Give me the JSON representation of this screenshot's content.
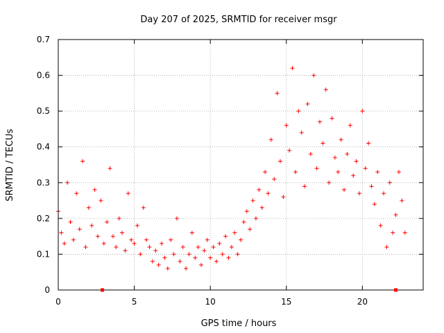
{
  "chart_data": {
    "type": "scatter",
    "title": "Day 207 of 2025, SRMTID for receiver msgr",
    "xlabel": "GPS time / hours",
    "ylabel": "SRMTID / TECUs",
    "xlim": [
      0,
      24
    ],
    "ylim": [
      0,
      0.7
    ],
    "x_ticks": [
      0,
      5,
      10,
      15,
      20
    ],
    "x_tick_labels": [
      "0",
      "5",
      "10",
      "15",
      "20"
    ],
    "y_ticks": [
      0,
      0.1,
      0.2,
      0.3,
      0.4,
      0.5,
      0.6,
      0.7
    ],
    "y_tick_labels": [
      "0",
      "0.1",
      "0.2",
      "0.3",
      "0.4",
      "0.5",
      "0.6",
      "0.7"
    ],
    "grid": true,
    "marker": "plus",
    "color": "#ff0000",
    "axis_markers": {
      "x": [
        2.9,
        22.2
      ],
      "y": 0
    },
    "series": [
      {
        "name": "msgr",
        "x": [
          0.0,
          0.2,
          0.4,
          0.6,
          0.8,
          1.0,
          1.2,
          1.4,
          1.6,
          1.8,
          2.0,
          2.2,
          2.4,
          2.6,
          2.8,
          3.0,
          3.2,
          3.4,
          3.6,
          3.8,
          4.0,
          4.2,
          4.4,
          4.6,
          4.8,
          5.0,
          5.2,
          5.4,
          5.6,
          5.8,
          6.0,
          6.2,
          6.4,
          6.6,
          6.8,
          7.0,
          7.2,
          7.4,
          7.6,
          7.8,
          8.0,
          8.2,
          8.4,
          8.6,
          8.8,
          9.0,
          9.2,
          9.4,
          9.6,
          9.8,
          10.0,
          10.2,
          10.4,
          10.6,
          10.8,
          11.0,
          11.2,
          11.4,
          11.6,
          11.8,
          12.0,
          12.2,
          12.4,
          12.6,
          12.8,
          13.0,
          13.2,
          13.4,
          13.6,
          13.8,
          14.0,
          14.2,
          14.4,
          14.6,
          14.8,
          15.0,
          15.2,
          15.4,
          15.6,
          15.8,
          16.0,
          16.2,
          16.4,
          16.6,
          16.8,
          17.0,
          17.2,
          17.4,
          17.6,
          17.8,
          18.0,
          18.2,
          18.4,
          18.6,
          18.8,
          19.0,
          19.2,
          19.4,
          19.6,
          19.8,
          20.0,
          20.2,
          20.4,
          20.6,
          20.8,
          21.0,
          21.2,
          21.4,
          21.6,
          21.8,
          22.0,
          22.2,
          22.4,
          22.6,
          22.8
        ],
        "y": [
          0.22,
          0.16,
          0.13,
          0.3,
          0.19,
          0.14,
          0.27,
          0.17,
          0.36,
          0.12,
          0.23,
          0.18,
          0.28,
          0.15,
          0.25,
          0.13,
          0.19,
          0.34,
          0.15,
          0.12,
          0.2,
          0.16,
          0.11,
          0.27,
          0.14,
          0.13,
          0.18,
          0.1,
          0.23,
          0.14,
          0.12,
          0.08,
          0.11,
          0.07,
          0.13,
          0.09,
          0.06,
          0.14,
          0.1,
          0.2,
          0.08,
          0.12,
          0.06,
          0.1,
          0.16,
          0.09,
          0.12,
          0.07,
          0.11,
          0.14,
          0.09,
          0.12,
          0.08,
          0.13,
          0.1,
          0.15,
          0.09,
          0.12,
          0.16,
          0.1,
          0.14,
          0.19,
          0.22,
          0.17,
          0.25,
          0.2,
          0.28,
          0.23,
          0.33,
          0.27,
          0.42,
          0.31,
          0.55,
          0.36,
          0.26,
          0.46,
          0.39,
          0.62,
          0.33,
          0.5,
          0.44,
          0.29,
          0.52,
          0.38,
          0.6,
          0.34,
          0.47,
          0.41,
          0.56,
          0.3,
          0.48,
          0.37,
          0.33,
          0.42,
          0.28,
          0.38,
          0.46,
          0.32,
          0.36,
          0.27,
          0.5,
          0.34,
          0.41,
          0.29,
          0.24,
          0.33,
          0.18,
          0.27,
          0.12,
          0.3,
          0.16,
          0.21,
          0.33,
          0.25,
          0.16
        ]
      }
    ]
  }
}
